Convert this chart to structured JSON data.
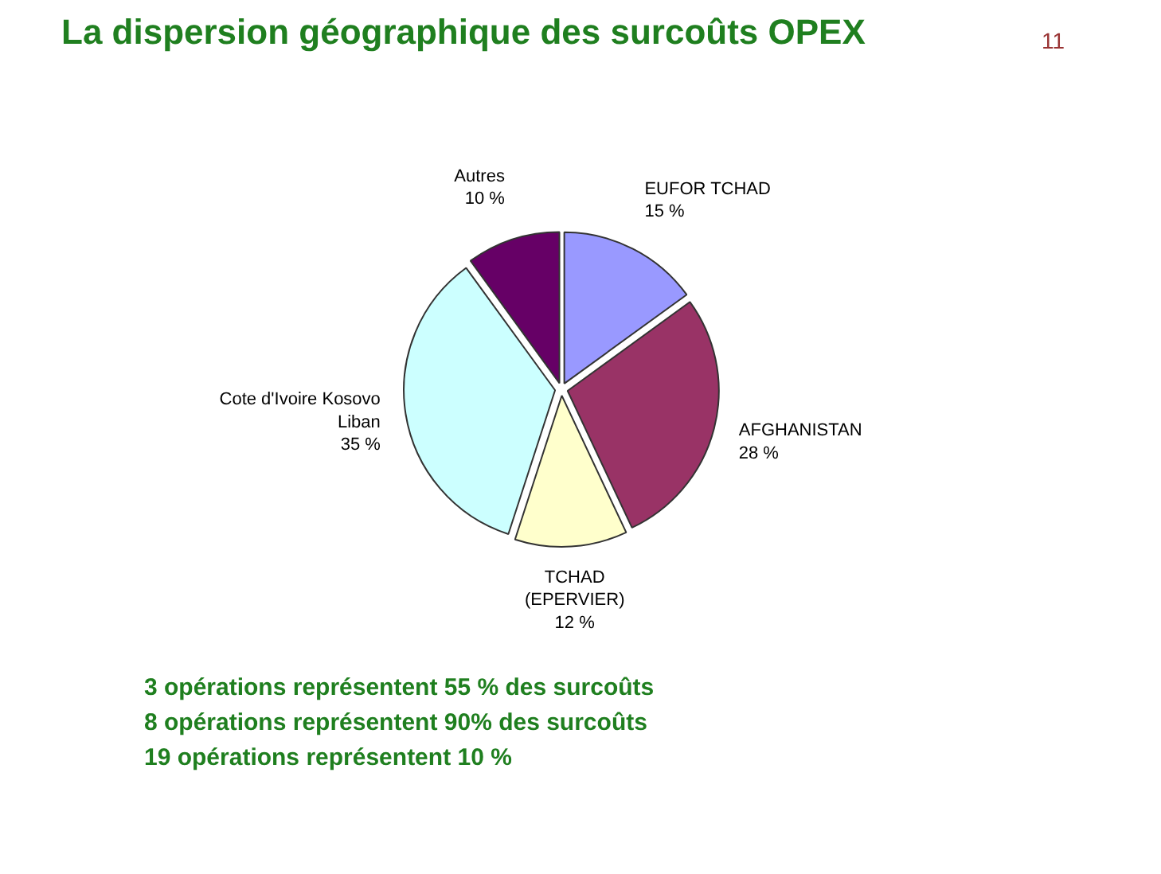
{
  "chart_data": {
    "type": "pie",
    "title": "La dispersion géographique des surcoûts OPEX",
    "categories": [
      "EUFOR TCHAD",
      "AFGHANISTAN",
      "TCHAD\n(EPERVIER)",
      "Cote d'Ivoire Kosovo\nLiban",
      "Autres"
    ],
    "values": [
      15,
      28,
      12,
      35,
      10
    ],
    "colors": [
      "#9999ff",
      "#993366",
      "#ffffcc",
      "#ccffff",
      "#660066"
    ],
    "value_labels": [
      "15 %",
      "28 %",
      "12 %",
      "35 %",
      "10 %"
    ],
    "annotations": [
      "11",
      "3 opérations représentent 55 % des surcoûts",
      "8 opérations représentent 90% des surcoûts",
      "19 opérations représentent 10 %"
    ]
  }
}
